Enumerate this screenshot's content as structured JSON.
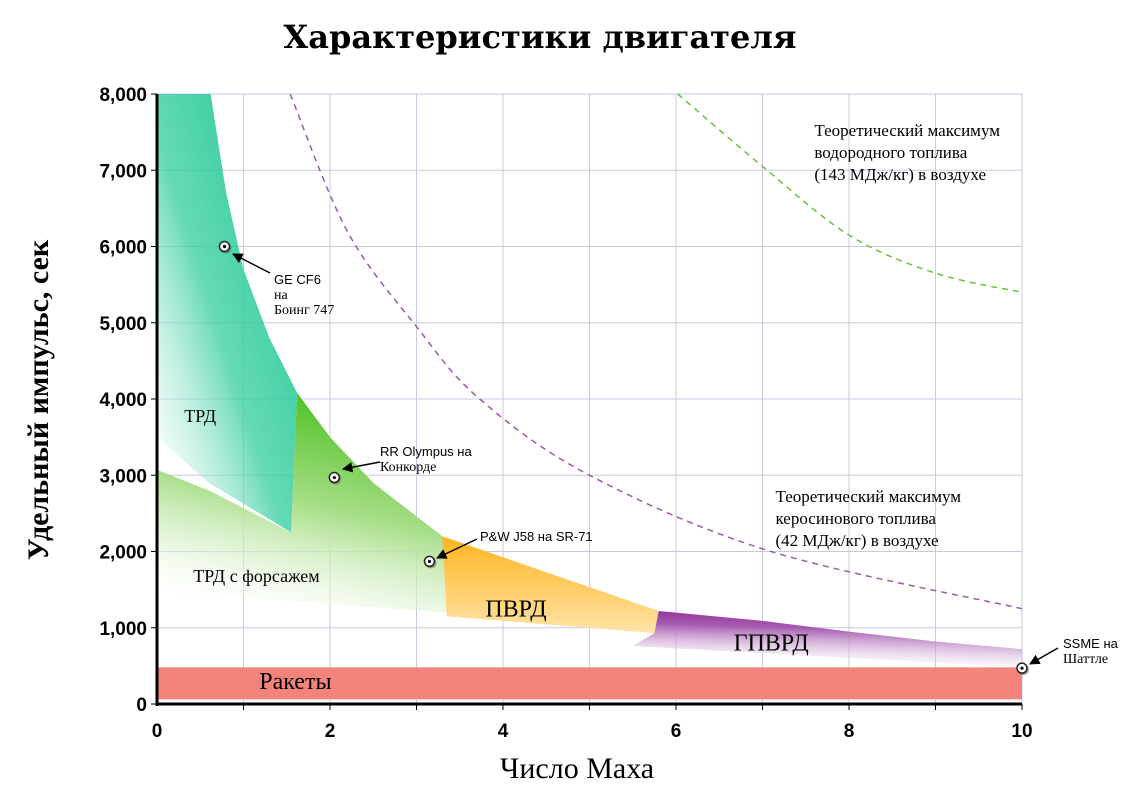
{
  "chart_data": {
    "type": "area",
    "title": "Характеристики двигателя",
    "xlabel": "Число Маха",
    "ylabel": "Удельный импульс, сек",
    "xlim": [
      0,
      10
    ],
    "ylim": [
      0,
      8000
    ],
    "x_ticks": [
      "0",
      "2",
      "4",
      "6",
      "8",
      "10"
    ],
    "y_ticks": [
      "0",
      "1,000",
      "2,000",
      "3,000",
      "4,000",
      "5,000",
      "6,000",
      "7,000",
      "8,000"
    ],
    "grid": true,
    "regions": [
      {
        "name": "ТРД",
        "color": "#10c48a",
        "points": [
          [
            0,
            8000
          ],
          [
            0.62,
            8000
          ],
          [
            0.8,
            6700
          ],
          [
            1.0,
            5700
          ],
          [
            1.3,
            4800
          ],
          [
            1.62,
            4080
          ],
          [
            1.55,
            2250
          ],
          [
            0.6,
            2900
          ],
          [
            0,
            3500
          ]
        ]
      },
      {
        "name": "ТРД с форсажем",
        "color": "#5cc62a",
        "points": [
          [
            0,
            3070
          ],
          [
            0.6,
            2800
          ],
          [
            1.55,
            2250
          ],
          [
            1.62,
            4080
          ],
          [
            2.0,
            3500
          ],
          [
            2.5,
            2900
          ],
          [
            3.3,
            2200
          ],
          [
            3.35,
            1200
          ],
          [
            0.9,
            1400
          ],
          [
            0,
            1400
          ]
        ]
      },
      {
        "name": "ПВРД",
        "color": "#ffb020",
        "points": [
          [
            3.3,
            2200
          ],
          [
            5.8,
            1220
          ],
          [
            5.75,
            930
          ],
          [
            3.35,
            1150
          ]
        ]
      },
      {
        "name": "ГПВРД",
        "color": "#8e2a96",
        "points": [
          [
            5.8,
            1220
          ],
          [
            7,
            1090
          ],
          [
            8,
            950
          ],
          [
            9,
            820
          ],
          [
            10,
            720
          ],
          [
            10,
            480
          ],
          [
            5.5,
            760
          ],
          [
            5.75,
            930
          ]
        ]
      },
      {
        "name": "Ракеты",
        "color": "#f2847b",
        "points": [
          [
            0,
            480
          ],
          [
            10,
            480
          ],
          [
            10,
            60
          ],
          [
            0,
            60
          ]
        ]
      }
    ],
    "theoretical_curves": [
      {
        "label": [
          "Теоретический максимум",
          "керосинового топлива",
          "(42 МДж/кг) в воздухе"
        ],
        "color": "#9a5aa8",
        "points": [
          [
            1.54,
            8000
          ],
          [
            2.2,
            6200
          ],
          [
            3,
            4950
          ],
          [
            3.73,
            4000
          ],
          [
            5,
            3000
          ],
          [
            7.1,
            2000
          ],
          [
            10,
            1250
          ]
        ]
      },
      {
        "label": [
          "Теоретический максимум",
          "водородного топлива",
          "(143 МДж/кг) в воздухе"
        ],
        "color": "#6cc03c",
        "points": [
          [
            6.02,
            8000
          ],
          [
            7,
            7050
          ],
          [
            8,
            6150
          ],
          [
            9,
            5650
          ],
          [
            10,
            5400
          ]
        ]
      }
    ],
    "engines": [
      {
        "label": [
          "GE CF6",
          "на",
          "Боинг 747"
        ],
        "x": 0.78,
        "y": 6000
      },
      {
        "label": [
          "RR Olympus на",
          "Конкорде"
        ],
        "x": 2.05,
        "y": 2970
      },
      {
        "label": [
          "P&W J58 на SR-71"
        ],
        "x": 3.15,
        "y": 1870
      },
      {
        "label": [
          "SSME на",
          "Шаттле"
        ],
        "x": 10,
        "y": 470
      }
    ]
  }
}
